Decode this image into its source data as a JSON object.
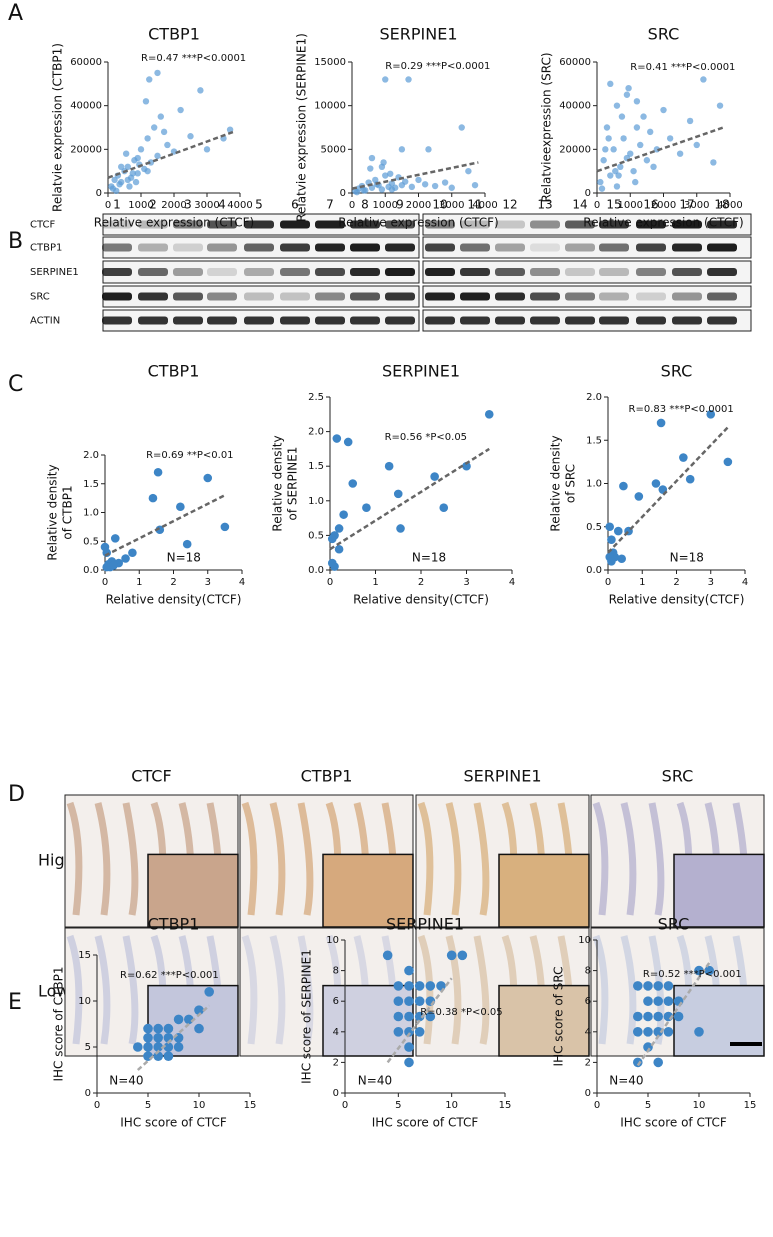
{
  "panels": [
    "A",
    "B",
    "C",
    "D",
    "E"
  ],
  "blot": {
    "lanes": [
      "1",
      "2",
      "3",
      "4",
      "5",
      "6",
      "7",
      "8",
      "9",
      "10",
      "11",
      "12",
      "13",
      "14",
      "15",
      "16",
      "17",
      "18"
    ],
    "rows": [
      "CTCF",
      "CTBP1",
      "SERPINE1",
      "SRC",
      "ACTIN"
    ]
  },
  "ihc": {
    "columns": [
      "CTCF",
      "CTBP1",
      "SERPINE1",
      "SRC"
    ],
    "rows": [
      "High",
      "Low"
    ]
  },
  "chart_data": [
    {
      "type": "scatter",
      "title": "CTBP1",
      "annotation": "R=0.47 ***P<0.0001",
      "xlabel": "Relative expression (CTCF)",
      "ylabel": "Relatvie expression (CTBP1)",
      "color": "#5b9bd5",
      "x": [
        100,
        200,
        300,
        400,
        500,
        600,
        700,
        800,
        900,
        1000,
        1100,
        1200,
        1300,
        1400,
        1500,
        1600,
        1800,
        2000,
        2200,
        2500,
        2800,
        3000,
        3500,
        3700,
        150,
        350,
        550,
        750,
        950,
        1150,
        600,
        900,
        1700,
        1200,
        400,
        1250,
        1500,
        250,
        650,
        850
      ],
      "values": [
        3000,
        6000,
        8000,
        5000,
        10000,
        12000,
        7000,
        15000,
        9000,
        20000,
        11000,
        25000,
        14000,
        30000,
        17000,
        35000,
        22000,
        19000,
        38000,
        26000,
        47000,
        20000,
        25000,
        29000,
        2000,
        4000,
        18000,
        9000,
        13000,
        42000,
        6000,
        16000,
        28000,
        10000,
        12000,
        52000,
        55000,
        1000,
        3000,
        5000
      ],
      "trend": {
        "x": [
          0,
          3800
        ],
        "y": [
          7000,
          28000
        ]
      },
      "xlim": [
        0,
        4000
      ],
      "xticks": [
        0,
        1000,
        2000,
        3000,
        4000
      ],
      "ylim": [
        0,
        60000
      ],
      "yticks": [
        0,
        20000,
        40000,
        60000
      ]
    },
    {
      "type": "scatter",
      "title": "SERPINE1",
      "annotation": "R=0.29 ***P<0.0001",
      "xlabel": "Relative expression (CTCF)",
      "ylabel": "Relatvie expression (SERPINE1)",
      "color": "#5b9bd5",
      "x": [
        100,
        200,
        300,
        400,
        500,
        600,
        700,
        800,
        900,
        1000,
        1100,
        1200,
        1300,
        1400,
        1500,
        1600,
        1800,
        2000,
        2200,
        2500,
        2800,
        3000,
        3500,
        3700,
        150,
        350,
        550,
        750,
        950,
        1150,
        1000,
        1700,
        3300,
        2300,
        1500,
        600,
        900,
        1200
      ],
      "values": [
        200,
        500,
        800,
        300,
        1200,
        600,
        1500,
        900,
        400,
        2000,
        700,
        1100,
        600,
        1800,
        900,
        1300,
        700,
        1500,
        1000,
        800,
        1200,
        600,
        2500,
        900,
        100,
        300,
        2800,
        1000,
        3500,
        2200,
        13000,
        13000,
        7500,
        5000,
        5000,
        4000,
        3000,
        400
      ],
      "trend": {
        "x": [
          0,
          3800
        ],
        "y": [
          500,
          3500
        ]
      },
      "xlim": [
        0,
        4000
      ],
      "xticks": [
        0,
        1000,
        2000,
        3000,
        4000
      ],
      "ylim": [
        0,
        15000
      ],
      "yticks": [
        0,
        5000,
        10000,
        15000
      ]
    },
    {
      "type": "scatter",
      "title": "SRC",
      "annotation": "R=0.41 ***P<0.0001",
      "xlabel": "Relative expression (CTCF)",
      "ylabel": "Relatvieexpression (SRC)",
      "color": "#5b9bd5",
      "x": [
        100,
        200,
        300,
        400,
        500,
        600,
        700,
        800,
        900,
        1000,
        1100,
        1200,
        1300,
        1400,
        1500,
        1600,
        1800,
        2000,
        2200,
        2500,
        2800,
        3000,
        3500,
        3700,
        150,
        350,
        550,
        750,
        950,
        1150,
        600,
        900,
        1700,
        1200,
        400,
        3200,
        250,
        650
      ],
      "values": [
        5000,
        15000,
        30000,
        8000,
        20000,
        40000,
        12000,
        25000,
        45000,
        18000,
        10000,
        30000,
        22000,
        35000,
        15000,
        28000,
        20000,
        38000,
        25000,
        18000,
        33000,
        22000,
        14000,
        40000,
        2000,
        25000,
        10000,
        35000,
        48000,
        5000,
        3000,
        16000,
        12000,
        42000,
        50000,
        52000,
        20000,
        8000
      ],
      "trend": {
        "x": [
          0,
          3800
        ],
        "y": [
          10000,
          30000
        ]
      },
      "xlim": [
        0,
        4000
      ],
      "xticks": [
        0,
        1000,
        2000,
        3000,
        4000
      ],
      "ylim": [
        0,
        60000
      ],
      "yticks": [
        0,
        20000,
        40000,
        60000
      ]
    },
    {
      "type": "scatter",
      "title": "CTBP1",
      "annotation": "R=0.69 **P<0.01",
      "n_label": "N=18",
      "xlabel": "Relative density(CTCF)",
      "ylabel": [
        "Relative density",
        "of CTBP1"
      ],
      "color": "#3d85c6",
      "x": [
        0,
        0.05,
        0.1,
        0.15,
        0.2,
        0.3,
        0.4,
        0.6,
        0.8,
        1.4,
        1.55,
        1.6,
        2.2,
        2.4,
        3.0,
        3.5,
        0.05,
        0.25
      ],
      "values": [
        0.4,
        0.3,
        0.1,
        0.05,
        0.15,
        0.55,
        0.12,
        0.2,
        0.3,
        1.25,
        1.7,
        0.7,
        1.1,
        0.45,
        1.6,
        0.75,
        0.05,
        0.08
      ],
      "trend": {
        "x": [
          0,
          3.5
        ],
        "y": [
          0.25,
          1.3
        ]
      },
      "xlim": [
        0,
        4
      ],
      "xticks": [
        0,
        1,
        2,
        3,
        4
      ],
      "ylim": [
        0,
        2
      ],
      "yticks": [
        {
          "value": 0,
          "label": "0.0"
        },
        0.5,
        {
          "value": 1,
          "label": "1.0"
        },
        1.5,
        {
          "value": 2,
          "label": "2.0"
        }
      ]
    },
    {
      "type": "scatter",
      "title": "SERPINE1",
      "annotation": "R=0.56 *P<0.05",
      "n_label": "N=18",
      "xlabel": "Relative density(CTCF)",
      "ylabel": [
        "Relative density",
        "of SERPINE1"
      ],
      "color": "#3d85c6",
      "x": [
        0.1,
        0.15,
        0.2,
        0.3,
        0.4,
        0.5,
        0.8,
        1.3,
        1.5,
        1.55,
        2.3,
        2.5,
        3.0,
        3.5,
        0.05,
        0.1,
        0.2,
        0.05
      ],
      "values": [
        0.5,
        1.9,
        0.6,
        0.8,
        1.85,
        1.25,
        0.9,
        1.5,
        1.1,
        0.6,
        1.35,
        0.9,
        1.5,
        2.25,
        0.1,
        0.05,
        0.3,
        0.45
      ],
      "trend": {
        "x": [
          0,
          3.5
        ],
        "y": [
          0.3,
          1.75
        ]
      },
      "xlim": [
        0,
        4
      ],
      "xticks": [
        0,
        1,
        2,
        3,
        4
      ],
      "ylim": [
        0,
        2.5
      ],
      "yticks": [
        {
          "value": 0,
          "label": "0.0"
        },
        0.5,
        {
          "value": 1,
          "label": "1.0"
        },
        1.5,
        {
          "value": 2,
          "label": "2.0"
        },
        2.5
      ]
    },
    {
      "type": "scatter",
      "title": "SRC",
      "annotation": "R=0.83 ***P<0.0001",
      "n_label": "N=18",
      "xlabel": "Relative density(CTCF)",
      "ylabel": [
        "Relative density",
        "of SRC"
      ],
      "color": "#3d85c6",
      "x": [
        0.05,
        0.1,
        0.15,
        0.2,
        0.3,
        0.4,
        0.45,
        0.6,
        0.9,
        1.4,
        1.55,
        1.6,
        2.2,
        2.4,
        3.0,
        3.5,
        0.05,
        0.1
      ],
      "values": [
        0.5,
        0.35,
        0.2,
        0.15,
        0.45,
        0.13,
        0.97,
        0.45,
        0.85,
        1.0,
        1.7,
        0.93,
        1.3,
        1.05,
        1.8,
        1.25,
        0.15,
        0.1
      ],
      "trend": {
        "x": [
          0,
          3.5
        ],
        "y": [
          0.2,
          1.65
        ]
      },
      "xlim": [
        0,
        4
      ],
      "xticks": [
        0,
        1,
        2,
        3,
        4
      ],
      "ylim": [
        0,
        2
      ],
      "yticks": [
        {
          "value": 0,
          "label": "0.0"
        },
        0.5,
        {
          "value": 1,
          "label": "1.0"
        },
        1.5,
        {
          "value": 2,
          "label": "2.0"
        }
      ]
    },
    {
      "type": "scatter",
      "title": "CTBP1",
      "annotation": "R=0.62 ***P<0.001",
      "n_label": "N=40",
      "xlabel": "IHC score of CTCF",
      "ylabel": "IHC score of CTBP1",
      "color": "#3d85c6",
      "x": [
        4,
        5,
        5,
        6,
        6,
        6,
        6,
        7,
        7,
        7,
        7,
        8,
        8,
        8,
        5,
        5,
        10,
        10,
        11,
        9
      ],
      "values": [
        5,
        5,
        4,
        4,
        5,
        6,
        7,
        4,
        5,
        6,
        7,
        5,
        6,
        8,
        6,
        7,
        7,
        9,
        11,
        8
      ],
      "trend": {
        "x": [
          4,
          11
        ],
        "y": [
          2.5,
          9.5
        ]
      },
      "xlim": [
        0,
        15
      ],
      "xticks": [
        0,
        5,
        10,
        15
      ],
      "ylim": [
        0,
        15
      ],
      "yticks": [
        0,
        5,
        10,
        15
      ]
    },
    {
      "type": "scatter",
      "title": "SERPINE1",
      "annotation": "R=0.38 *P<0.05",
      "n_label": "N=40",
      "xlabel": "IHC score of CTCF",
      "ylabel": "IHC score of SERPINE1",
      "color": "#3d85c6",
      "x": [
        4,
        5,
        5,
        5,
        5,
        6,
        6,
        6,
        6,
        6,
        6,
        6,
        7,
        7,
        7,
        7,
        8,
        8,
        8,
        10,
        11,
        9
      ],
      "values": [
        9,
        4,
        5,
        6,
        7,
        2,
        3,
        4,
        5,
        6,
        7,
        8,
        4,
        5,
        6,
        7,
        5,
        6,
        7,
        9,
        9,
        7
      ],
      "trend": {
        "x": [
          4,
          10
        ],
        "y": [
          2,
          7.5
        ]
      },
      "xlim": [
        0,
        15
      ],
      "xticks": [
        0,
        5,
        10,
        15
      ],
      "ylim": [
        0,
        10
      ],
      "yticks": [
        0,
        2,
        4,
        6,
        8,
        10
      ]
    },
    {
      "type": "scatter",
      "title": "SRC",
      "annotation": "R=0.52 ***P<0.001",
      "n_label": "N=40",
      "xlabel": "IHC score of CTCF",
      "ylabel": "IHC score of SRC",
      "color": "#3d85c6",
      "x": [
        4,
        4,
        4,
        4,
        5,
        5,
        5,
        5,
        5,
        6,
        6,
        6,
        6,
        6,
        7,
        7,
        7,
        7,
        8,
        8,
        10,
        10,
        11
      ],
      "values": [
        2,
        4,
        5,
        7,
        3,
        4,
        5,
        6,
        7,
        2,
        4,
        5,
        6,
        7,
        4,
        5,
        6,
        7,
        5,
        6,
        4,
        8,
        8
      ],
      "trend": {
        "x": [
          4,
          11
        ],
        "y": [
          1.8,
          8.5
        ]
      },
      "xlim": [
        0,
        15
      ],
      "xticks": [
        0,
        5,
        10,
        15
      ],
      "ylim": [
        0,
        10
      ],
      "yticks": [
        0,
        2,
        4,
        6,
        8,
        10
      ]
    }
  ]
}
